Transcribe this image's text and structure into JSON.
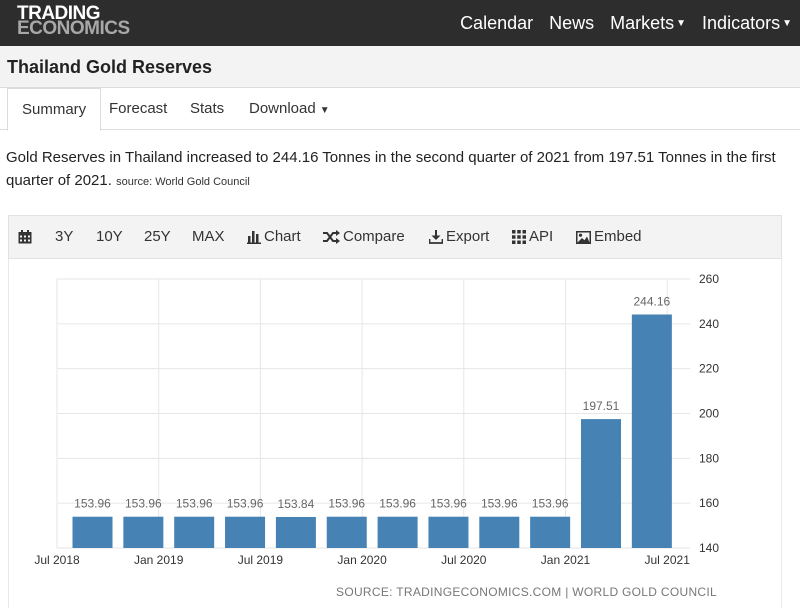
{
  "logo": {
    "line1": "TRADING",
    "line2": "ECONOMICS"
  },
  "nav": {
    "calendar": "Calendar",
    "news": "News",
    "markets": "Markets",
    "indicators": "Indicators"
  },
  "page": {
    "title": "Thailand Gold Reserves"
  },
  "tabs": {
    "summary": "Summary",
    "forecast": "Forecast",
    "stats": "Stats",
    "download": "Download"
  },
  "description": {
    "text": "Gold Reserves in Thailand increased to 244.16 Tonnes in the second quarter of 2021 from 197.51 Tonnes in the first quarter of 2021.",
    "source": "source: World Gold Council"
  },
  "toolbar": {
    "y3": "3Y",
    "y10": "10Y",
    "y25": "25Y",
    "max": "MAX",
    "chart": "Chart",
    "compare": "Compare",
    "export": "Export",
    "api": "API",
    "embed": "Embed"
  },
  "colors": {
    "bar": "#4682b4",
    "navbar": "#2d2d2d"
  },
  "chart_data": {
    "type": "bar",
    "categories": [
      "2018 Q3",
      "2018 Q4",
      "2019 Q1",
      "2019 Q2",
      "2019 Q3",
      "2019 Q4",
      "2020 Q1",
      "2020 Q2",
      "2020 Q3",
      "2020 Q4",
      "2021 Q1",
      "2021 Q2"
    ],
    "values": [
      153.96,
      153.96,
      153.96,
      153.96,
      153.84,
      153.96,
      153.96,
      153.96,
      153.96,
      153.96,
      197.51,
      244.16
    ],
    "value_labels": [
      "153.96",
      "153.96",
      "153.96",
      "153.96",
      "153.84",
      "153.96",
      "153.96",
      "153.96",
      "153.96",
      "153.96",
      "197.51",
      "244.16"
    ],
    "x_tick_labels": [
      "Jul 2018",
      "Jan 2019",
      "Jul 2019",
      "Jan 2020",
      "Jul 2020",
      "Jan 2021",
      "Jul 2021"
    ],
    "y_ticks": [
      140,
      160,
      180,
      200,
      220,
      240,
      260
    ],
    "ylim": [
      140,
      260
    ],
    "grid": true,
    "y_axis_position": "right",
    "source": "SOURCE: TRADINGECONOMICS.COM | WORLD GOLD COUNCIL"
  }
}
